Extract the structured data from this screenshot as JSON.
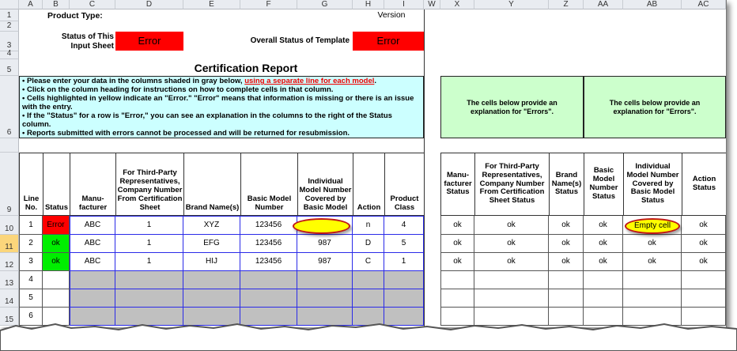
{
  "columns": [
    "A",
    "B",
    "C",
    "D",
    "E",
    "F",
    "G",
    "H",
    "I",
    "W",
    "X",
    "Y",
    "Z",
    "AA",
    "AB",
    "AC"
  ],
  "rows": [
    "1",
    "2",
    "3",
    "4",
    "5",
    "6",
    "",
    "9",
    "10",
    "11",
    "12",
    "13",
    "14",
    "15"
  ],
  "selected_row": "11",
  "header": {
    "product_type_label": "Product Type:",
    "version_label": "Version",
    "status_input_sheet_label": "Status of This Input Sheet",
    "status_input_sheet_value": "Error",
    "overall_status_label": "Overall Status of Template",
    "overall_status_value": "Error",
    "report_title": "Certification Report"
  },
  "instructions": {
    "line1_prefix": "• Please enter your data in the columns shaded in gray below, ",
    "line1_link": "using a separate line for each model",
    "line1_suffix": ".",
    "line2": "• Click on the column heading for instructions on how to complete cells in that column.",
    "line3": "• Cells highlighted in yellow indicate an \"Error.\"  \"Error\" means that information is missing or there is an issue with the entry.",
    "line4": "• If the \"Status\" for a row is \"Error,\" you can see an explanation in the columns to the right of the Status column.",
    "line5": "• Reports submitted with errors cannot be processed and will be returned for resubmission."
  },
  "explanations": {
    "left": "The cells below provide an explanation for \"Errors\".",
    "right": "The cells below provide an explanation for \"Errors\"."
  },
  "table_headers": [
    "Line No.",
    "Status",
    "Manu-facturer",
    "For Third-Party Representatives, Company Number From Certification Sheet",
    "Brand Name(s)",
    "Basic Model Number",
    "Individual Model Number Covered by Basic Model",
    "Action",
    "Product Class"
  ],
  "status_headers": [
    "Manu-facturer Status",
    "For Third-Party Representatives, Company Number From Certification Sheet Status",
    "Brand Name(s) Status",
    "Basic Model Number Status",
    "Individual Model Number Covered by Basic Model Status",
    "Action Status"
  ],
  "data_rows": [
    {
      "line": "1",
      "status": "Error",
      "cells": [
        "ABC",
        "1",
        "XYZ",
        "123456",
        "",
        "n",
        "4"
      ],
      "status_cells": [
        "ok",
        "ok",
        "ok",
        "ok",
        "Empty cell",
        "ok"
      ]
    },
    {
      "line": "2",
      "status": "ok",
      "cells": [
        "ABC",
        "1",
        "EFG",
        "123456",
        "987",
        "D",
        "5"
      ],
      "status_cells": [
        "ok",
        "ok",
        "ok",
        "ok",
        "ok",
        "ok"
      ]
    },
    {
      "line": "3",
      "status": "ok",
      "cells": [
        "ABC",
        "1",
        "HIJ",
        "123456",
        "987",
        "C",
        "1"
      ],
      "status_cells": [
        "ok",
        "ok",
        "ok",
        "ok",
        "ok",
        "ok"
      ]
    },
    {
      "line": "4"
    },
    {
      "line": "5"
    },
    {
      "line": "6"
    }
  ],
  "colors": {
    "error": "#ff0000",
    "ok": "#00ee00",
    "highlight": "#ffff00",
    "input_gray": "#c0c0c0",
    "info_bg": "#ccffff",
    "explain_bg": "#ccffcc"
  }
}
